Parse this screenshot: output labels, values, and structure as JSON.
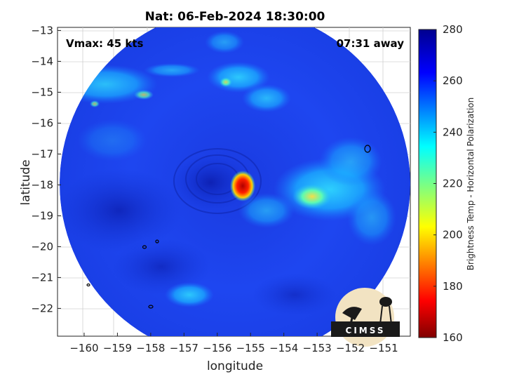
{
  "title": "Nat: 06-Feb-2024 18:30:00",
  "vmax_label": "Vmax: 45 kts",
  "away_label": "07:31 away",
  "chart_data": {
    "type": "heatmap",
    "title": "Nat: 06-Feb-2024 18:30:00",
    "xlabel": "longitude",
    "ylabel": "latitude",
    "xlim": [
      -160.8,
      -150.2
    ],
    "ylim": [
      -22.9,
      -12.9
    ],
    "x_ticks": [
      -160,
      -159,
      -158,
      -157,
      -156,
      -155,
      -154,
      -153,
      -152,
      -151
    ],
    "y_ticks": [
      -13,
      -14,
      -15,
      -16,
      -17,
      -18,
      -19,
      -20,
      -21,
      -22
    ],
    "grid": true,
    "colorbar": {
      "label": "Brightness Temp - Horizontal Polarization",
      "range": [
        160,
        280
      ],
      "ticks": [
        160,
        180,
        200,
        220,
        240,
        260,
        280
      ],
      "colormap": "jet"
    },
    "swath": {
      "center_lon": -155.5,
      "center_lat": -17.9,
      "shape": "circular"
    },
    "features": [
      {
        "name": "storm-core",
        "lon": -155.2,
        "lat": -18.0,
        "brightness_temp": 170
      },
      {
        "name": "rainband-east",
        "lon": -153.0,
        "lat": -18.4,
        "brightness_temp": 218
      },
      {
        "name": "rainband-northeast",
        "lon": -154.2,
        "lat": -15.1,
        "brightness_temp": 235
      },
      {
        "name": "cloud-north",
        "lon": -155.3,
        "lat": -14.7,
        "brightness_temp": 215
      },
      {
        "name": "cloud-northwest",
        "lon": -158.0,
        "lat": -15.1,
        "brightness_temp": 220
      },
      {
        "name": "cloud-southwest",
        "lon": -157.2,
        "lat": -21.7,
        "brightness_temp": 238
      }
    ]
  },
  "logo": {
    "text": "CIMSS"
  }
}
